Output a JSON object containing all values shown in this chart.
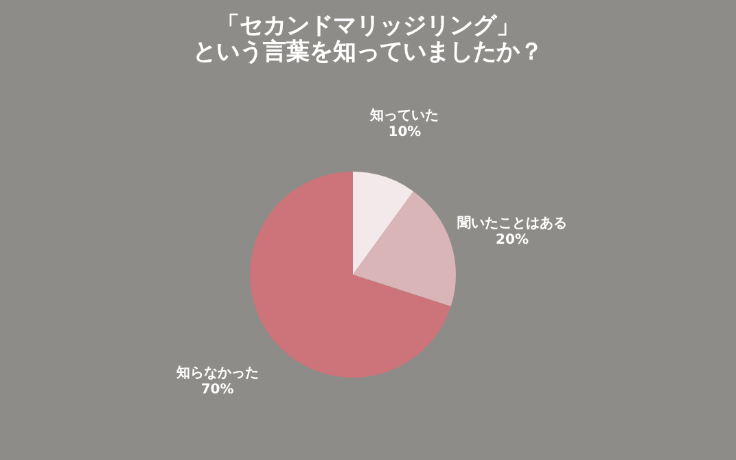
{
  "chart_data": {
    "type": "pie",
    "title": "「セカンドマリッジリング」という言葉を知っていましたか？",
    "categories": [
      "知っていた",
      "聞いたことはある",
      "知らなかった"
    ],
    "values": [
      10,
      20,
      70
    ],
    "value_labels": [
      "10%",
      "20%",
      "70%"
    ],
    "colors": [
      "#f3e9ea",
      "#d9b5b7",
      "#cc7479"
    ],
    "legend": false
  }
}
